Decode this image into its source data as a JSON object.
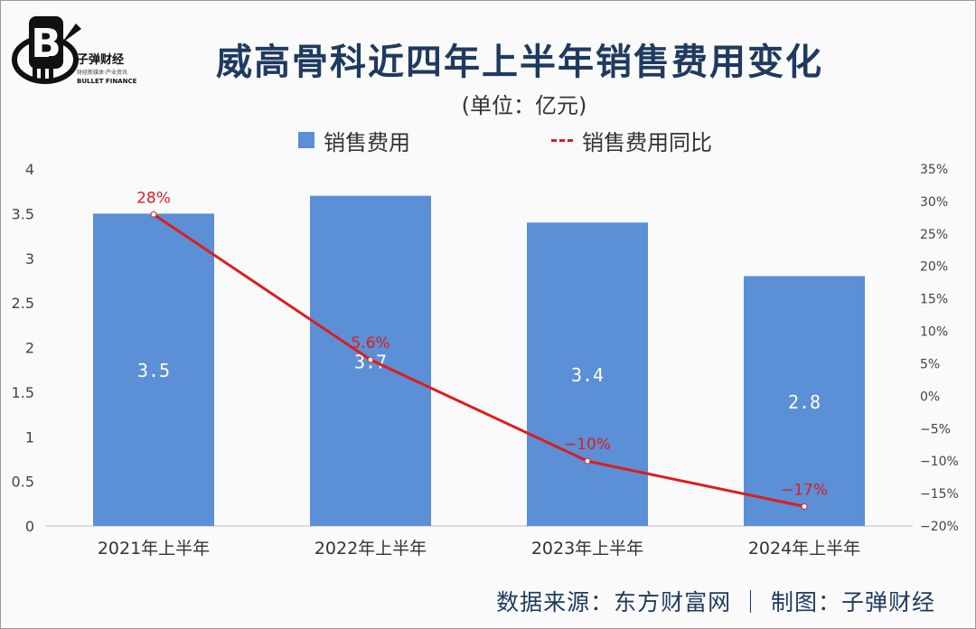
{
  "brand": {
    "name_cn": "子弹财经",
    "tagline": "财经新媒体·产业资讯",
    "name_en": "BULLET FINANCE"
  },
  "header": {
    "title": "威高骨科近四年上半年销售费用变化",
    "unit": "(单位：亿元)"
  },
  "legend": {
    "bar_label": "销售费用",
    "line_label": "销售费用同比"
  },
  "footer": {
    "source": "数据来源：东方财富网 ｜ 制图：子弹财经"
  },
  "colors": {
    "bar": "#5b8fd6",
    "line": "#e01b1b",
    "title": "#1f3a5f"
  },
  "chart_data": {
    "type": "bar",
    "title": "威高骨科近四年上半年销售费用变化",
    "categories": [
      "2021年上半年",
      "2022年上半年",
      "2023年上半年",
      "2024年上半年"
    ],
    "series": [
      {
        "name": "销售费用",
        "type": "bar",
        "axis": "left",
        "values": [
          3.5,
          3.7,
          3.4,
          2.8
        ],
        "labels": [
          "3.5",
          "3.7",
          "3.4",
          "2.8"
        ]
      },
      {
        "name": "销售费用同比",
        "type": "line",
        "axis": "right",
        "values": [
          28,
          5.6,
          -10,
          -17
        ],
        "labels": [
          "28%",
          "5.6%",
          "−10%",
          "−17%"
        ]
      }
    ],
    "y_left": {
      "range": [
        0,
        4
      ],
      "ticks": [
        "0",
        "0.5",
        "1",
        "1.5",
        "2",
        "2.5",
        "3",
        "3.5",
        "4"
      ]
    },
    "y_right": {
      "range": [
        -20,
        35
      ],
      "ticks": [
        "−20%",
        "−15%",
        "−10%",
        "−5%",
        "0%",
        "5%",
        "10%",
        "15%",
        "20%",
        "25%",
        "30%",
        "35%"
      ]
    },
    "ylabel": "亿元",
    "grid": false
  }
}
